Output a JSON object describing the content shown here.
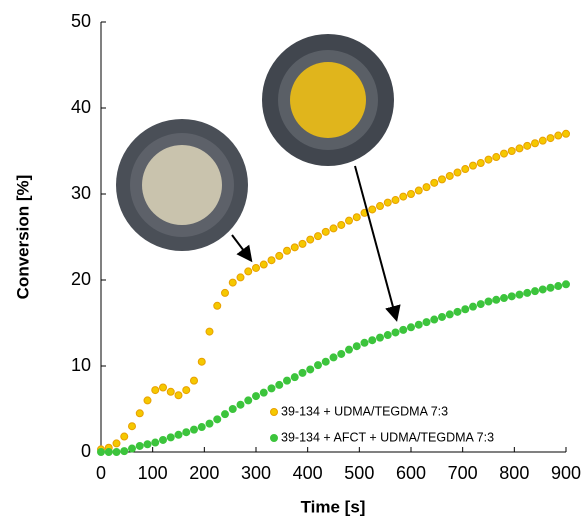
{
  "chart_data": {
    "type": "scatter",
    "x_label": "Time [s]",
    "y_label": "Conversion [%]",
    "xlim": [
      0,
      900
    ],
    "ylim": [
      0,
      50
    ],
    "xticks": [
      0,
      100,
      200,
      300,
      400,
      500,
      600,
      700,
      800,
      900
    ],
    "yticks": [
      0,
      10,
      20,
      30,
      40,
      50
    ],
    "x": [
      0,
      15,
      30,
      45,
      60,
      75,
      90,
      105,
      120,
      135,
      150,
      165,
      180,
      195,
      210,
      225,
      240,
      255,
      270,
      285,
      300,
      315,
      330,
      345,
      360,
      375,
      390,
      405,
      420,
      435,
      450,
      465,
      480,
      495,
      510,
      525,
      540,
      555,
      570,
      585,
      600,
      615,
      630,
      645,
      660,
      675,
      690,
      705,
      720,
      735,
      750,
      765,
      780,
      795,
      810,
      825,
      840,
      855,
      870,
      885,
      900
    ],
    "series": [
      {
        "name": "39-134 + UDMA/TEGDMA 7:3",
        "color": "#f5c800",
        "edge": "#e8a000",
        "values": [
          0.3,
          0.5,
          1,
          1.8,
          3,
          4.5,
          6,
          7.2,
          7.5,
          7,
          6.6,
          7.2,
          8.3,
          10.5,
          14,
          17,
          18.5,
          19.7,
          20.3,
          21,
          21.4,
          21.8,
          22.3,
          22.8,
          23.4,
          23.8,
          24.2,
          24.7,
          25.1,
          25.6,
          26,
          26.4,
          26.9,
          27.3,
          27.8,
          28.2,
          28.6,
          29,
          29.3,
          29.7,
          30,
          30.4,
          30.8,
          31.3,
          31.7,
          32.1,
          32.5,
          32.9,
          33.3,
          33.6,
          34,
          34.3,
          34.7,
          35,
          35.3,
          35.6,
          35.9,
          36.2,
          36.5,
          36.8,
          37
        ]
      },
      {
        "name": "39-134 + AFCT + UDMA/TEGDMA 7:3",
        "color": "#3cc43c",
        "edge": "#3cc43c",
        "values": [
          0,
          0,
          0,
          0.1,
          0.4,
          0.7,
          0.9,
          1.1,
          1.4,
          1.7,
          2,
          2.3,
          2.6,
          2.9,
          3.3,
          3.8,
          4.4,
          5,
          5.5,
          6,
          6.5,
          6.9,
          7.4,
          7.8,
          8.3,
          8.7,
          9.2,
          9.6,
          10.1,
          10.5,
          11,
          11.4,
          11.9,
          12.3,
          12.7,
          13,
          13.3,
          13.6,
          13.9,
          14.2,
          14.5,
          14.8,
          15.1,
          15.4,
          15.7,
          16,
          16.3,
          16.6,
          16.9,
          17.2,
          17.5,
          17.7,
          17.9,
          18.1,
          18.3,
          18.5,
          18.7,
          18.9,
          19.1,
          19.3,
          19.5
        ]
      }
    ]
  }
}
